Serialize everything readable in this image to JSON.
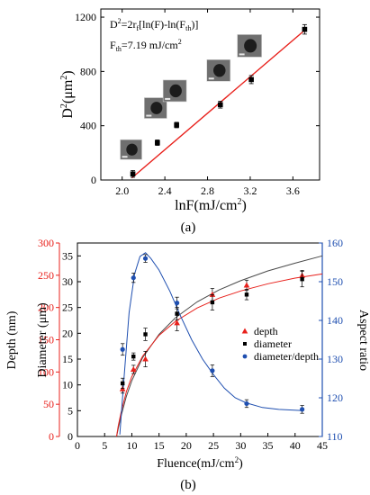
{
  "chart_data": [
    {
      "type": "scatter",
      "panel_label": "(a)",
      "xlabel": "lnF(mJ/cm²)",
      "ylabel": "D²(μm²)",
      "xlim": [
        1.8,
        3.85
      ],
      "ylim": [
        0,
        1260
      ],
      "x_ticks": [
        "2.0",
        "2.4",
        "2.8",
        "3.2",
        "3.6"
      ],
      "x_tick_values": [
        2.0,
        2.4,
        2.8,
        3.2,
        3.6
      ],
      "y_ticks": [
        "0",
        "400",
        "800",
        "1200"
      ],
      "y_tick_values": [
        0,
        400,
        800,
        1200
      ],
      "annotations": {
        "equation": "D²=2r₀²[ln(F)-ln(Fₜₕ)]",
        "threshold": "Fₜₕ=7.19 mJ/cm²"
      },
      "series": [
        {
          "marker": "square",
          "color": "#000000",
          "x": [
            2.1,
            2.33,
            2.51,
            2.92,
            3.21,
            3.71
          ],
          "y": [
            45,
            275,
            405,
            555,
            740,
            1110
          ],
          "err": [
            25,
            20,
            20,
            25,
            30,
            35
          ]
        }
      ],
      "fit_line": {
        "color": "#e8201b",
        "x": [
          2.09,
          3.72
        ],
        "y": [
          15,
          1110
        ]
      }
    },
    {
      "type": "scatter",
      "panel_label": "(b)",
      "xlabel": "Fluence(mJ/cm²)",
      "ylabel_left_outer": "Depth (nm)",
      "ylabel_left_inner": "Diameter (μm)",
      "ylabel_right": "Aspect ratio",
      "xlim": [
        0,
        45
      ],
      "ylim_depth": [
        0,
        300
      ],
      "ylim_diameter": [
        0,
        37.5
      ],
      "ylim_aspect": [
        110,
        160
      ],
      "x_ticks": [
        "0",
        "5",
        "10",
        "15",
        "20",
        "25",
        "30",
        "35",
        "40",
        "45"
      ],
      "x_tick_values": [
        0,
        5,
        10,
        15,
        20,
        25,
        30,
        35,
        40,
        45
      ],
      "depth_ticks": [
        "0",
        "50",
        "100",
        "150",
        "200",
        "250",
        "300"
      ],
      "depth_tick_values": [
        0,
        50,
        100,
        150,
        200,
        250,
        300
      ],
      "diameter_ticks": [
        "0",
        "5",
        "10",
        "15",
        "20",
        "25",
        "30",
        "35"
      ],
      "diameter_tick_values": [
        0,
        5,
        10,
        15,
        20,
        25,
        30,
        35
      ],
      "aspect_ticks": [
        "110",
        "120",
        "130",
        "140",
        "150",
        "160"
      ],
      "aspect_tick_values": [
        110,
        120,
        130,
        140,
        150,
        160
      ],
      "colors": {
        "depth_axis": "#e8201b",
        "aspect_axis": "#1f4fb0"
      },
      "legend_position": "right",
      "series": [
        {
          "name": "depth",
          "marker": "triangle",
          "color": "#e8201b",
          "axis": "diameter",
          "x": [
            8.3,
            10.3,
            12.5,
            18.3,
            24.8,
            31.1,
            41.3
          ],
          "y": [
            9.2,
            13.0,
            15.0,
            22.0,
            27.5,
            29.3,
            31.2
          ],
          "err": [
            0.8,
            0.8,
            1.5,
            1.5,
            1.2,
            1.0,
            1.0
          ]
        },
        {
          "name": "diameter",
          "marker": "square",
          "color": "#000000",
          "axis": "diameter",
          "x": [
            8.3,
            10.3,
            12.5,
            18.3,
            24.8,
            31.1,
            41.3
          ],
          "y": [
            10.3,
            15.5,
            19.8,
            23.8,
            26.0,
            27.5,
            30.5
          ],
          "err": [
            1.0,
            0.7,
            1.2,
            1.2,
            1.5,
            1.0,
            1.5
          ]
        },
        {
          "name": "diameter/depth",
          "marker": "circle",
          "color": "#1f4fb0",
          "axis": "aspect",
          "x": [
            8.3,
            10.3,
            12.5,
            18.3,
            24.8,
            31.1,
            41.3
          ],
          "y": [
            132.5,
            151.0,
            156.0,
            144.5,
            127.0,
            118.5,
            117.0
          ],
          "err": [
            1.5,
            1.2,
            1.0,
            1.5,
            1.5,
            1.0,
            1.0
          ]
        }
      ],
      "curves": [
        {
          "color": "#4a4a4a",
          "axis": "diameter",
          "x": [
            7.2,
            7.5,
            8,
            9,
            10,
            12,
            15,
            18,
            22,
            26,
            30,
            35,
            40,
            45
          ],
          "y": [
            0,
            1.5,
            3.9,
            7.8,
            10.8,
            15.3,
            19.8,
            23.0,
            26.1,
            28.4,
            30.2,
            32.1,
            33.6,
            35.0
          ]
        },
        {
          "color": "#e8201b",
          "axis": "diameter",
          "x": [
            7.2,
            7.5,
            8,
            9,
            10,
            12,
            15,
            18,
            22,
            26,
            30,
            35,
            40,
            45
          ],
          "y": [
            0,
            2.0,
            4.6,
            8.7,
            11.6,
            15.6,
            19.6,
            22.3,
            24.9,
            26.8,
            28.2,
            29.6,
            30.7,
            31.5
          ]
        },
        {
          "color": "#1f4fb0",
          "axis": "aspect",
          "x": [
            7.8,
            8.5,
            9.5,
            10.5,
            11.5,
            12.5,
            13.5,
            15,
            17,
            19,
            21,
            23,
            25,
            27,
            29,
            31,
            34,
            37,
            41.5
          ],
          "y": [
            110.5,
            124,
            142,
            152,
            156.5,
            157.5,
            156,
            153,
            147.5,
            141,
            135,
            130,
            126,
            122.5,
            120,
            118.7,
            117.5,
            117,
            116.7
          ]
        }
      ]
    }
  ]
}
